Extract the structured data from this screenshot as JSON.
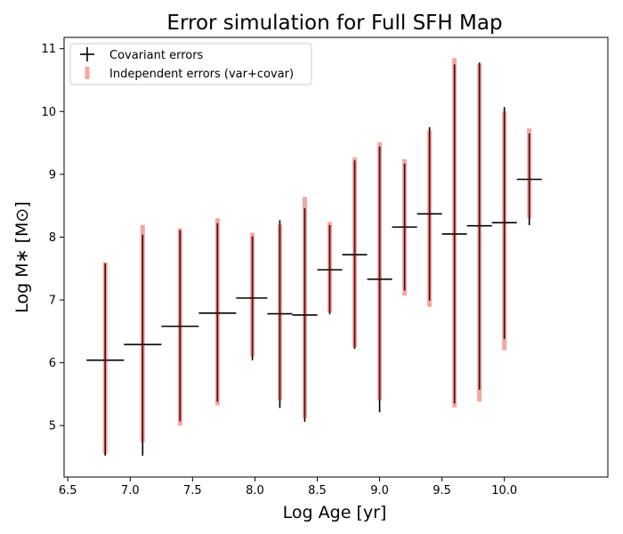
{
  "chart_data": {
    "type": "errorbar",
    "title": "Error simulation for Full SFH Map",
    "xlabel": "Log Age [yr]",
    "ylabel": "Log M∗ [M⊙]",
    "xlim": [
      6.47,
      10.83
    ],
    "ylim": [
      4.18,
      11.18
    ],
    "xticks": [
      6.5,
      7.0,
      7.5,
      8.0,
      8.5,
      9.0,
      9.5,
      10.0
    ],
    "xtick_labels": [
      "6.5",
      "7.0",
      "7.5",
      "8.0",
      "8.5",
      "9.0",
      "9.5",
      "10.0"
    ],
    "yticks": [
      5,
      6,
      7,
      8,
      9,
      10,
      11
    ],
    "ytick_labels": [
      "5",
      "6",
      "7",
      "8",
      "9",
      "10",
      "11"
    ],
    "grid": false,
    "legend_position": "top-left",
    "legend": {
      "covariant_label": "Covariant errors",
      "independent_label": "Independent errors (var+covar)"
    },
    "colors": {
      "covariant": "#000000",
      "independent": "#f4a6a0",
      "center": "#8b0000"
    },
    "series": [
      {
        "name": "Covariant errors",
        "style": "cross",
        "points": [
          {
            "x": 6.8,
            "y": 6.04,
            "xlo": 6.65,
            "xhi": 6.95,
            "ylo": 4.52,
            "yhi": 7.58
          },
          {
            "x": 7.1,
            "y": 6.29,
            "xlo": 6.95,
            "xhi": 7.25,
            "ylo": 4.52,
            "yhi": 8.04
          },
          {
            "x": 7.4,
            "y": 6.58,
            "xlo": 7.25,
            "xhi": 7.55,
            "ylo": 5.07,
            "yhi": 8.11
          },
          {
            "x": 7.7,
            "y": 6.79,
            "xlo": 7.55,
            "xhi": 7.85,
            "ylo": 5.38,
            "yhi": 8.22
          },
          {
            "x": 7.98,
            "y": 7.03,
            "xlo": 7.85,
            "xhi": 8.1,
            "ylo": 6.04,
            "yhi": 8.01
          },
          {
            "x": 8.2,
            "y": 6.78,
            "xlo": 8.1,
            "xhi": 8.3,
            "ylo": 5.28,
            "yhi": 8.27
          },
          {
            "x": 8.4,
            "y": 6.76,
            "xlo": 8.3,
            "xhi": 8.5,
            "ylo": 5.06,
            "yhi": 8.46
          },
          {
            "x": 8.6,
            "y": 7.48,
            "xlo": 8.5,
            "xhi": 8.7,
            "ylo": 6.77,
            "yhi": 8.19
          },
          {
            "x": 8.8,
            "y": 7.72,
            "xlo": 8.7,
            "xhi": 8.9,
            "ylo": 6.22,
            "yhi": 9.22
          },
          {
            "x": 9.0,
            "y": 7.33,
            "xlo": 8.9,
            "xhi": 9.1,
            "ylo": 5.21,
            "yhi": 9.44
          },
          {
            "x": 9.2,
            "y": 8.16,
            "xlo": 9.1,
            "xhi": 9.3,
            "ylo": 7.15,
            "yhi": 9.17
          },
          {
            "x": 9.4,
            "y": 8.37,
            "xlo": 9.3,
            "xhi": 9.5,
            "ylo": 6.99,
            "yhi": 9.75
          },
          {
            "x": 9.6,
            "y": 8.05,
            "xlo": 9.5,
            "xhi": 9.7,
            "ylo": 5.35,
            "yhi": 10.75
          },
          {
            "x": 9.8,
            "y": 8.18,
            "xlo": 9.7,
            "xhi": 9.9,
            "ylo": 5.57,
            "yhi": 10.78
          },
          {
            "x": 10.0,
            "y": 8.23,
            "xlo": 9.9,
            "xhi": 10.1,
            "ylo": 6.38,
            "yhi": 10.07
          },
          {
            "x": 10.2,
            "y": 8.92,
            "xlo": 10.1,
            "xhi": 10.3,
            "ylo": 8.19,
            "yhi": 9.65
          }
        ]
      },
      {
        "name": "Independent errors (var+covar)",
        "style": "bar",
        "points": [
          {
            "x": 6.8,
            "ylo": 4.55,
            "yhi": 7.6
          },
          {
            "x": 7.1,
            "ylo": 4.73,
            "yhi": 8.19
          },
          {
            "x": 7.4,
            "ylo": 5.0,
            "yhi": 8.14
          },
          {
            "x": 7.7,
            "ylo": 5.32,
            "yhi": 8.3
          },
          {
            "x": 7.98,
            "ylo": 6.1,
            "yhi": 8.07
          },
          {
            "x": 8.2,
            "ylo": 5.4,
            "yhi": 8.2
          },
          {
            "x": 8.4,
            "ylo": 5.12,
            "yhi": 8.64
          },
          {
            "x": 8.6,
            "ylo": 6.8,
            "yhi": 8.24
          },
          {
            "x": 8.8,
            "ylo": 6.25,
            "yhi": 9.27
          },
          {
            "x": 9.0,
            "ylo": 5.4,
            "yhi": 9.51
          },
          {
            "x": 9.2,
            "ylo": 7.07,
            "yhi": 9.24
          },
          {
            "x": 9.4,
            "ylo": 6.89,
            "yhi": 9.7
          },
          {
            "x": 9.6,
            "ylo": 5.29,
            "yhi": 10.85
          },
          {
            "x": 9.8,
            "ylo": 5.38,
            "yhi": 10.76
          },
          {
            "x": 10.0,
            "ylo": 6.2,
            "yhi": 10.0
          },
          {
            "x": 10.2,
            "ylo": 8.3,
            "yhi": 9.73
          }
        ]
      }
    ]
  }
}
